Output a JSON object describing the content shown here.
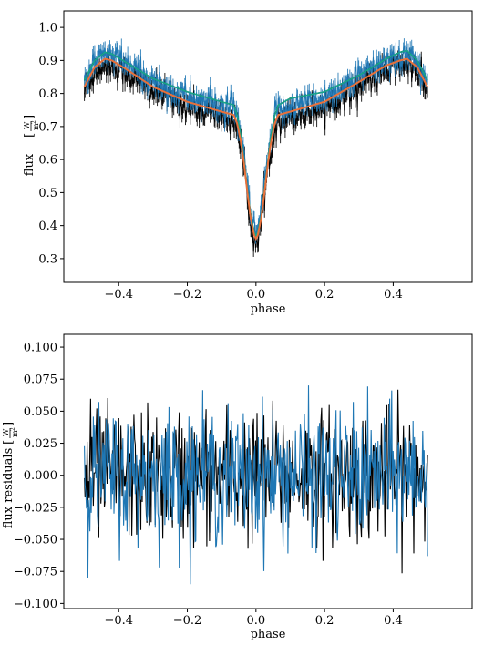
{
  "chart_data": [
    {
      "type": "line",
      "xlabel": "phase",
      "ylabel": "flux",
      "ylabel_unit": {
        "numerator": "W",
        "denominator": "m",
        "exponent": "2"
      },
      "xlim": [
        -0.56,
        0.63
      ],
      "ylim": [
        0.228,
        1.05
      ],
      "xticks": [
        "−0.4",
        "−0.2",
        "0.0",
        "0.2",
        "0.4"
      ],
      "xtick_values": [
        -0.4,
        -0.2,
        0.0,
        0.2,
        0.4
      ],
      "yticks": [
        "0.3",
        "0.4",
        "0.5",
        "0.6",
        "0.7",
        "0.8",
        "0.9",
        "1.0"
      ],
      "ytick_values": [
        0.3,
        0.4,
        0.5,
        0.6,
        0.7,
        0.8,
        0.9,
        1.0
      ],
      "grid": false,
      "colors": {
        "black_data": "#000000",
        "blue_data": "#1f77b4",
        "teal_model": "#17a589",
        "dark_model": "#1a1a1a",
        "orange_model": "#e8703a"
      },
      "model_orange": {
        "x": [
          -0.5,
          -0.47,
          -0.44,
          -0.42,
          -0.38,
          -0.3,
          -0.2,
          -0.1,
          -0.065,
          -0.055,
          -0.045,
          -0.035,
          -0.025,
          -0.015,
          -0.005,
          0.0,
          0.005,
          0.015,
          0.025,
          0.035,
          0.045,
          0.055,
          0.065,
          0.1,
          0.2,
          0.3,
          0.38,
          0.42,
          0.44,
          0.47,
          0.5
        ],
        "y": [
          0.82,
          0.88,
          0.905,
          0.9,
          0.875,
          0.82,
          0.775,
          0.745,
          0.735,
          0.71,
          0.66,
          0.59,
          0.5,
          0.42,
          0.37,
          0.36,
          0.37,
          0.42,
          0.5,
          0.59,
          0.66,
          0.71,
          0.735,
          0.745,
          0.775,
          0.835,
          0.885,
          0.9,
          0.905,
          0.88,
          0.82
        ]
      },
      "model_teal": {
        "x": [
          -0.5,
          -0.47,
          -0.44,
          -0.42,
          -0.38,
          -0.3,
          -0.2,
          -0.1,
          -0.065,
          -0.055,
          -0.045,
          -0.035,
          -0.025,
          -0.015,
          -0.005,
          0.0,
          0.005,
          0.015,
          0.025,
          0.035,
          0.045,
          0.055,
          0.065,
          0.1,
          0.2,
          0.3,
          0.38,
          0.42,
          0.44,
          0.47,
          0.5
        ],
        "y": [
          0.84,
          0.9,
          0.925,
          0.92,
          0.895,
          0.845,
          0.805,
          0.775,
          0.765,
          0.735,
          0.68,
          0.6,
          0.51,
          0.43,
          0.38,
          0.37,
          0.38,
          0.43,
          0.51,
          0.6,
          0.68,
          0.735,
          0.765,
          0.785,
          0.805,
          0.855,
          0.905,
          0.925,
          0.93,
          0.9,
          0.84
        ]
      },
      "data_black_offset": -0.015,
      "data_blue_offset": 0.015,
      "data_scatter": 0.03
    },
    {
      "type": "line",
      "xlabel": "phase",
      "ylabel": "flux residuals",
      "ylabel_unit": {
        "numerator": "W",
        "denominator": "m",
        "exponent": "2"
      },
      "xlim": [
        -0.56,
        0.63
      ],
      "ylim": [
        -0.104,
        0.11
      ],
      "xticks": [
        "−0.4",
        "−0.2",
        "0.0",
        "0.2",
        "0.4"
      ],
      "xtick_values": [
        -0.4,
        -0.2,
        0.0,
        0.2,
        0.4
      ],
      "yticks": [
        "−0.100",
        "−0.075",
        "−0.050",
        "−0.025",
        "0.000",
        "0.025",
        "0.050",
        "0.075",
        "0.100"
      ],
      "ytick_values": [
        -0.1,
        -0.075,
        -0.05,
        -0.025,
        0.0,
        0.025,
        0.05,
        0.075,
        0.1
      ],
      "grid": false,
      "series": [
        {
          "color": "#000000",
          "amplitude": 0.03
        },
        {
          "color": "#1f77b4",
          "amplitude": 0.03
        }
      ],
      "x_range": [
        -0.5,
        0.5
      ]
    }
  ]
}
